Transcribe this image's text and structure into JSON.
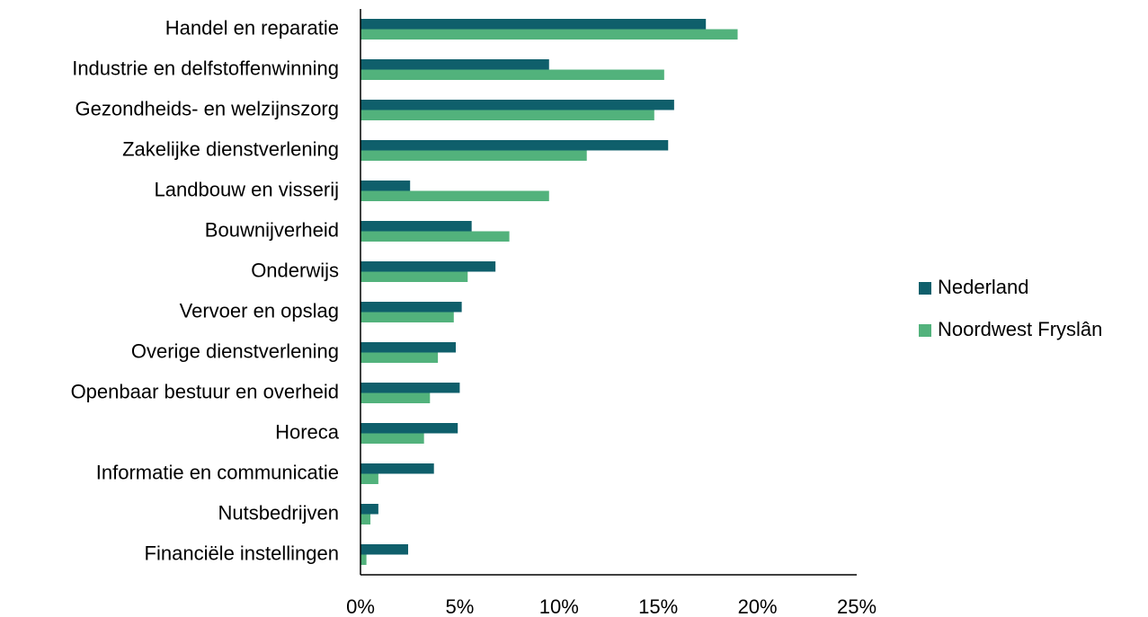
{
  "chart_data": {
    "type": "barh",
    "categories": [
      "Handel en reparatie",
      "Industrie en delfstoffenwinning",
      "Gezondheids- en welzijnszorg",
      "Zakelijke dienstverlening",
      "Landbouw en visserij",
      "Bouwnijverheid",
      "Onderwijs",
      "Vervoer en opslag",
      "Overige dienstverlening",
      "Openbaar bestuur en overheid",
      "Horeca",
      "Informatie en communicatie",
      "Nutsbedrijven",
      "Financiële instellingen"
    ],
    "series": [
      {
        "name": "Nederland",
        "color": "#0f5f6b",
        "values": [
          17.4,
          9.5,
          15.8,
          15.5,
          2.5,
          5.6,
          6.8,
          5.1,
          4.8,
          5.0,
          4.9,
          3.7,
          0.9,
          2.4
        ]
      },
      {
        "name": "Noordwest Fryslân",
        "color": "#52b27c",
        "values": [
          19.0,
          15.3,
          14.8,
          11.4,
          9.5,
          7.5,
          5.4,
          4.7,
          3.9,
          3.5,
          3.2,
          0.9,
          0.5,
          0.3
        ]
      }
    ],
    "xlim": [
      0,
      25
    ],
    "xticks": [
      {
        "value": 0,
        "label": "0%"
      },
      {
        "value": 5,
        "label": "5%"
      },
      {
        "value": 10,
        "label": "10%"
      },
      {
        "value": 15,
        "label": "15%"
      },
      {
        "value": 20,
        "label": "20%"
      },
      {
        "value": 25,
        "label": "25%"
      }
    ],
    "grid": false,
    "legend": "right"
  }
}
